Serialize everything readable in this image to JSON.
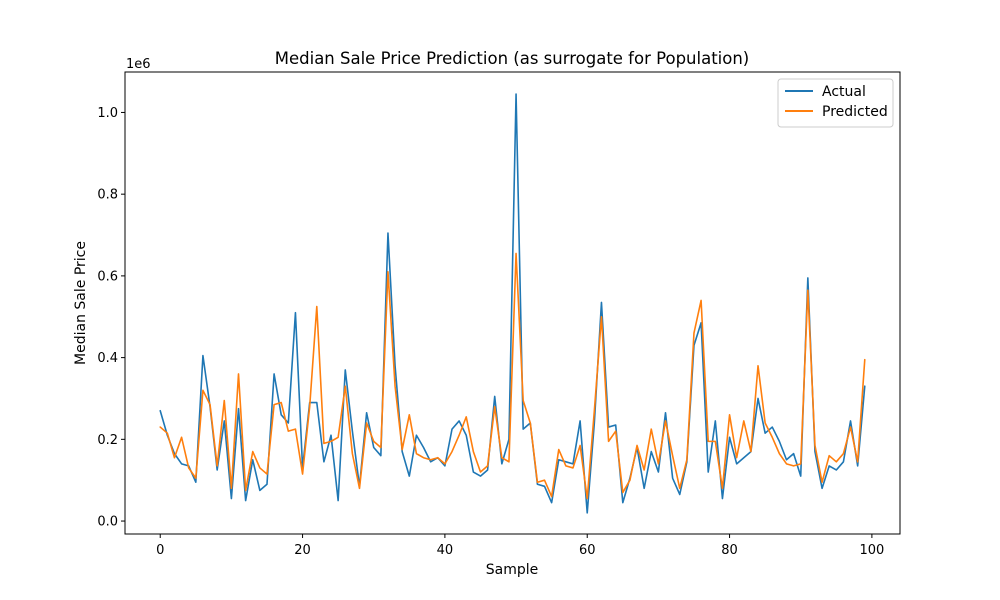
{
  "chart_data": {
    "type": "line",
    "title": "Median Sale Price Prediction (as surrogate for Population)",
    "xlabel": "Sample",
    "ylabel": "Median Sale Price",
    "y_scale_label": "1e6",
    "xlim": [
      -4.95,
      103.95
    ],
    "ylim": [
      -0.0317,
      1.099
    ],
    "x_ticks": [
      0,
      20,
      40,
      60,
      80,
      100
    ],
    "x_tick_labels": [
      "0",
      "20",
      "40",
      "60",
      "80",
      "100"
    ],
    "y_ticks": [
      0.0,
      0.2,
      0.4,
      0.6,
      0.8,
      1.0
    ],
    "y_tick_labels": [
      "0.0",
      "0.2",
      "0.4",
      "0.6",
      "0.8",
      "1.0"
    ],
    "grid": false,
    "legend_position": "top-right",
    "series": [
      {
        "name": "Actual",
        "color": "#1f77b4",
        "values": [
          0.27,
          0.21,
          0.165,
          0.14,
          0.135,
          0.095,
          0.405,
          0.28,
          0.125,
          0.245,
          0.055,
          0.275,
          0.05,
          0.15,
          0.075,
          0.09,
          0.36,
          0.26,
          0.24,
          0.51,
          0.13,
          0.29,
          0.29,
          0.145,
          0.21,
          0.05,
          0.37,
          0.22,
          0.085,
          0.265,
          0.18,
          0.16,
          0.705,
          0.38,
          0.17,
          0.11,
          0.21,
          0.18,
          0.145,
          0.155,
          0.135,
          0.225,
          0.245,
          0.21,
          0.12,
          0.11,
          0.125,
          0.305,
          0.14,
          0.2,
          1.045,
          0.225,
          0.24,
          0.09,
          0.085,
          0.045,
          0.15,
          0.145,
          0.14,
          0.245,
          0.02,
          0.24,
          0.535,
          0.23,
          0.235,
          0.045,
          0.105,
          0.18,
          0.08,
          0.17,
          0.12,
          0.265,
          0.105,
          0.065,
          0.145,
          0.43,
          0.485,
          0.12,
          0.245,
          0.055,
          0.205,
          0.14,
          0.155,
          0.17,
          0.3,
          0.215,
          0.23,
          0.195,
          0.15,
          0.165,
          0.11,
          0.595,
          0.17,
          0.08,
          0.135,
          0.125,
          0.145,
          0.245,
          0.135,
          0.33
        ]
      },
      {
        "name": "Predicted",
        "color": "#ff7f0e",
        "values": [
          0.23,
          0.215,
          0.155,
          0.205,
          0.13,
          0.105,
          0.32,
          0.285,
          0.135,
          0.295,
          0.08,
          0.36,
          0.075,
          0.17,
          0.13,
          0.115,
          0.285,
          0.29,
          0.22,
          0.225,
          0.115,
          0.28,
          0.525,
          0.19,
          0.195,
          0.205,
          0.33,
          0.165,
          0.08,
          0.24,
          0.195,
          0.18,
          0.61,
          0.33,
          0.175,
          0.26,
          0.165,
          0.155,
          0.15,
          0.155,
          0.14,
          0.17,
          0.21,
          0.255,
          0.17,
          0.12,
          0.135,
          0.28,
          0.155,
          0.145,
          0.655,
          0.295,
          0.24,
          0.095,
          0.1,
          0.06,
          0.175,
          0.135,
          0.13,
          0.185,
          0.055,
          0.27,
          0.5,
          0.195,
          0.22,
          0.07,
          0.1,
          0.185,
          0.125,
          0.225,
          0.14,
          0.245,
          0.16,
          0.08,
          0.15,
          0.46,
          0.54,
          0.195,
          0.195,
          0.08,
          0.26,
          0.155,
          0.245,
          0.17,
          0.38,
          0.24,
          0.205,
          0.165,
          0.14,
          0.135,
          0.14,
          0.565,
          0.185,
          0.095,
          0.16,
          0.145,
          0.165,
          0.23,
          0.145,
          0.395
        ]
      }
    ]
  }
}
